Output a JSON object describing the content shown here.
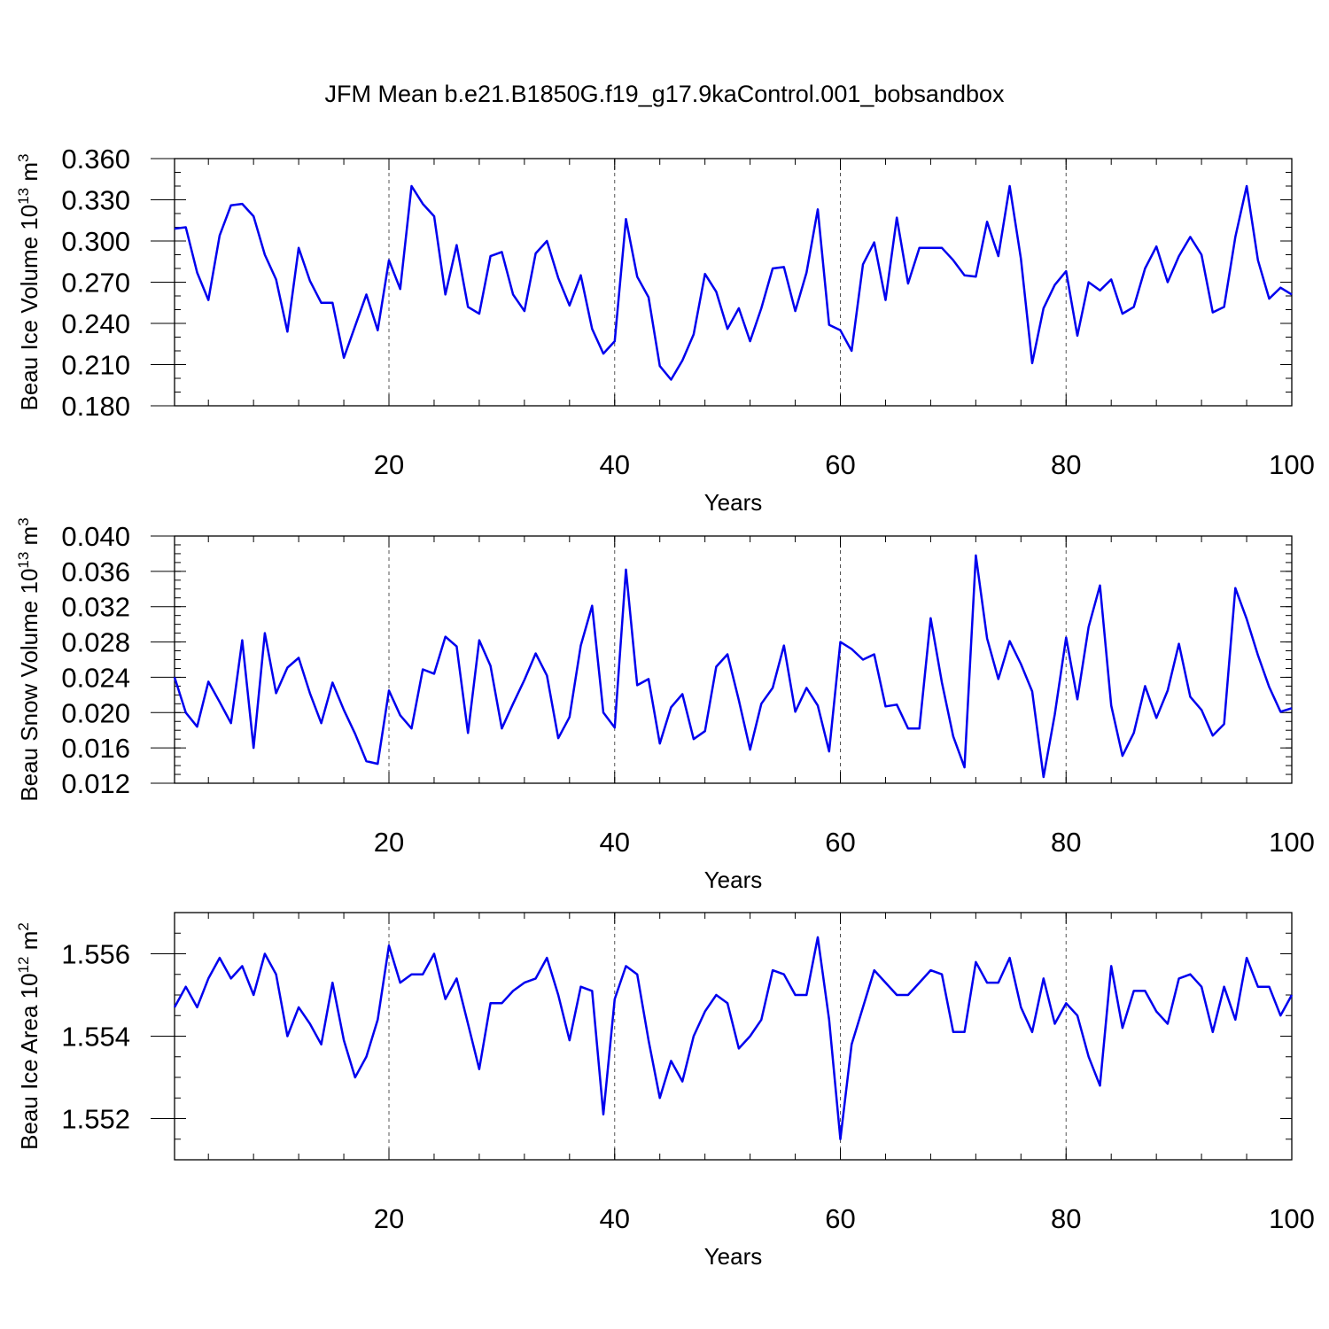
{
  "title": "JFM Mean b.e21.B1850G.f19_g17.9kaControl.001_bobsandbox",
  "colors": {
    "series": "#0000ee"
  },
  "chart_data": [
    {
      "type": "line",
      "ylabel": "Beau Ice Volume 10",
      "ylabel_exp": "13",
      "ylabel_unit": " m",
      "ylabel_unit_exp": "3",
      "xlabel": "Years",
      "xlim": [
        1,
        100
      ],
      "ylim": [
        0.18,
        0.36
      ],
      "y_ticks": [
        0.18,
        0.21,
        0.24,
        0.27,
        0.3,
        0.33,
        0.36
      ],
      "y_tick_labels": [
        "0.180",
        "0.210",
        "0.240",
        "0.270",
        "0.300",
        "0.330",
        "0.360"
      ],
      "y_minor_step": 0.01,
      "x_ticks": [
        20,
        40,
        60,
        80,
        100
      ],
      "x_tick_labels": [
        "20",
        "40",
        "60",
        "80",
        "100"
      ],
      "x_minor_step": 4,
      "grid_x": true,
      "x": [
        1,
        2,
        3,
        4,
        5,
        6,
        7,
        8,
        9,
        10,
        11,
        12,
        13,
        14,
        15,
        16,
        17,
        18,
        19,
        20,
        21,
        22,
        23,
        24,
        25,
        26,
        27,
        28,
        29,
        30,
        31,
        32,
        33,
        34,
        35,
        36,
        37,
        38,
        39,
        40,
        41,
        42,
        43,
        44,
        45,
        46,
        47,
        48,
        49,
        50,
        51,
        52,
        53,
        54,
        55,
        56,
        57,
        58,
        59,
        60,
        61,
        62,
        63,
        64,
        65,
        66,
        67,
        68,
        69,
        70,
        71,
        72,
        73,
        74,
        75,
        76,
        77,
        78,
        79,
        80,
        81,
        82,
        83,
        84,
        85,
        86,
        87,
        88,
        89,
        90,
        91,
        92,
        93,
        94,
        95,
        96,
        97,
        98,
        99,
        100
      ],
      "values": [
        0.309,
        0.31,
        0.277,
        0.257,
        0.304,
        0.326,
        0.327,
        0.318,
        0.29,
        0.272,
        0.234,
        0.295,
        0.271,
        0.255,
        0.255,
        0.215,
        0.238,
        0.261,
        0.235,
        0.286,
        0.265,
        0.34,
        0.327,
        0.318,
        0.261,
        0.297,
        0.252,
        0.247,
        0.289,
        0.292,
        0.261,
        0.249,
        0.291,
        0.3,
        0.273,
        0.253,
        0.275,
        0.236,
        0.218,
        0.227,
        0.316,
        0.274,
        0.259,
        0.209,
        0.199,
        0.213,
        0.232,
        0.276,
        0.263,
        0.236,
        0.251,
        0.227,
        0.251,
        0.28,
        0.281,
        0.249,
        0.277,
        0.323,
        0.239,
        0.235,
        0.22,
        0.283,
        0.299,
        0.257,
        0.317,
        0.269,
        0.295,
        0.295,
        0.295,
        0.286,
        0.275,
        0.274,
        0.314,
        0.289,
        0.34,
        0.287,
        0.211,
        0.251,
        0.268,
        0.278,
        0.231,
        0.27,
        0.264,
        0.272,
        0.247,
        0.252,
        0.28,
        0.296,
        0.27,
        0.289,
        0.303,
        0.29,
        0.248,
        0.252,
        0.303,
        0.34,
        0.286,
        0.258,
        0.266,
        0.261
      ]
    },
    {
      "type": "line",
      "ylabel": "Beau Snow Volume 10",
      "ylabel_exp": "13",
      "ylabel_unit": " m",
      "ylabel_unit_exp": "3",
      "xlabel": "Years",
      "xlim": [
        1,
        100
      ],
      "ylim": [
        0.012,
        0.04
      ],
      "y_ticks": [
        0.012,
        0.016,
        0.02,
        0.024,
        0.028,
        0.032,
        0.036,
        0.04
      ],
      "y_tick_labels": [
        "0.012",
        "0.016",
        "0.020",
        "0.024",
        "0.028",
        "0.032",
        "0.036",
        "0.040"
      ],
      "y_minor_step": 0.001,
      "x_ticks": [
        20,
        40,
        60,
        80,
        100
      ],
      "x_tick_labels": [
        "20",
        "40",
        "60",
        "80",
        "100"
      ],
      "x_minor_step": 4,
      "grid_x": true,
      "x": [
        1,
        2,
        3,
        4,
        5,
        6,
        7,
        8,
        9,
        10,
        11,
        12,
        13,
        14,
        15,
        16,
        17,
        18,
        19,
        20,
        21,
        22,
        23,
        24,
        25,
        26,
        27,
        28,
        29,
        30,
        31,
        32,
        33,
        34,
        35,
        36,
        37,
        38,
        39,
        40,
        41,
        42,
        43,
        44,
        45,
        46,
        47,
        48,
        49,
        50,
        51,
        52,
        53,
        54,
        55,
        56,
        57,
        58,
        59,
        60,
        61,
        62,
        63,
        64,
        65,
        66,
        67,
        68,
        69,
        70,
        71,
        72,
        73,
        74,
        75,
        76,
        77,
        78,
        79,
        80,
        81,
        82,
        83,
        84,
        85,
        86,
        87,
        88,
        89,
        90,
        91,
        92,
        93,
        94,
        95,
        96,
        97,
        98,
        99,
        100
      ],
      "values": [
        0.024,
        0.02,
        0.0184,
        0.0235,
        0.0212,
        0.0188,
        0.0282,
        0.016,
        0.029,
        0.0222,
        0.0251,
        0.0262,
        0.0222,
        0.0188,
        0.0234,
        0.0203,
        0.0176,
        0.0145,
        0.0142,
        0.0225,
        0.0197,
        0.0182,
        0.0249,
        0.0244,
        0.0286,
        0.0275,
        0.0177,
        0.0282,
        0.0253,
        0.0182,
        0.021,
        0.0237,
        0.0267,
        0.0242,
        0.0171,
        0.0195,
        0.0276,
        0.0321,
        0.02,
        0.0183,
        0.0362,
        0.0231,
        0.0238,
        0.0165,
        0.0206,
        0.0221,
        0.017,
        0.0179,
        0.0252,
        0.0266,
        0.0214,
        0.0158,
        0.021,
        0.0228,
        0.0276,
        0.0201,
        0.0228,
        0.0208,
        0.0156,
        0.028,
        0.0272,
        0.026,
        0.0266,
        0.0207,
        0.0209,
        0.0182,
        0.0182,
        0.0307,
        0.0234,
        0.0173,
        0.0138,
        0.0378,
        0.0284,
        0.0238,
        0.0281,
        0.0255,
        0.0224,
        0.0127,
        0.0198,
        0.0285,
        0.0215,
        0.0297,
        0.0344,
        0.0208,
        0.0151,
        0.0177,
        0.023,
        0.0194,
        0.0225,
        0.0278,
        0.0218,
        0.0203,
        0.0174,
        0.0187,
        0.0341,
        0.0306,
        0.0265,
        0.0229,
        0.0201,
        0.0205
      ]
    },
    {
      "type": "line",
      "ylabel": "Beau Ice Area 10",
      "ylabel_exp": "12",
      "ylabel_unit": " m",
      "ylabel_unit_exp": "2",
      "xlabel": "Years",
      "xlim": [
        1,
        100
      ],
      "ylim": [
        1.551,
        1.557
      ],
      "y_ticks": [
        1.552,
        1.554,
        1.556
      ],
      "y_tick_labels": [
        "1.552",
        "1.554",
        "1.556"
      ],
      "y_minor_step": 0.0005,
      "x_ticks": [
        20,
        40,
        60,
        80,
        100
      ],
      "x_tick_labels": [
        "20",
        "40",
        "60",
        "80",
        "100"
      ],
      "x_minor_step": 4,
      "grid_x": true,
      "x": [
        1,
        2,
        3,
        4,
        5,
        6,
        7,
        8,
        9,
        10,
        11,
        12,
        13,
        14,
        15,
        16,
        17,
        18,
        19,
        20,
        21,
        22,
        23,
        24,
        25,
        26,
        27,
        28,
        29,
        30,
        31,
        32,
        33,
        34,
        35,
        36,
        37,
        38,
        39,
        40,
        41,
        42,
        43,
        44,
        45,
        46,
        47,
        48,
        49,
        50,
        51,
        52,
        53,
        54,
        55,
        56,
        57,
        58,
        59,
        60,
        61,
        62,
        63,
        64,
        65,
        66,
        67,
        68,
        69,
        70,
        71,
        72,
        73,
        74,
        75,
        76,
        77,
        78,
        79,
        80,
        81,
        82,
        83,
        84,
        85,
        86,
        87,
        88,
        89,
        90,
        91,
        92,
        93,
        94,
        95,
        96,
        97,
        98,
        99,
        100
      ],
      "values": [
        1.5547,
        1.5552,
        1.5547,
        1.5554,
        1.5559,
        1.5554,
        1.5557,
        1.555,
        1.556,
        1.5555,
        1.554,
        1.5547,
        1.5543,
        1.5538,
        1.5553,
        1.5539,
        1.553,
        1.5535,
        1.5544,
        1.5562,
        1.5553,
        1.5555,
        1.5555,
        1.556,
        1.5549,
        1.5554,
        1.5543,
        1.5532,
        1.5548,
        1.5548,
        1.5551,
        1.5553,
        1.5554,
        1.5559,
        1.555,
        1.5539,
        1.5552,
        1.5551,
        1.5521,
        1.5549,
        1.5557,
        1.5555,
        1.5539,
        1.5525,
        1.5534,
        1.5529,
        1.554,
        1.5546,
        1.555,
        1.5548,
        1.5537,
        1.554,
        1.5544,
        1.5556,
        1.5555,
        1.555,
        1.555,
        1.5564,
        1.5544,
        1.5515,
        1.5538,
        1.5547,
        1.5556,
        1.5553,
        1.555,
        1.555,
        1.5553,
        1.5556,
        1.5555,
        1.5541,
        1.5541,
        1.5558,
        1.5553,
        1.5553,
        1.5559,
        1.5547,
        1.5541,
        1.5554,
        1.5543,
        1.5548,
        1.5545,
        1.5535,
        1.5528,
        1.5557,
        1.5542,
        1.5551,
        1.5551,
        1.5546,
        1.5543,
        1.5554,
        1.5555,
        1.5552,
        1.5541,
        1.5552,
        1.5544,
        1.5559,
        1.5552,
        1.5552,
        1.5545,
        1.555
      ]
    }
  ]
}
